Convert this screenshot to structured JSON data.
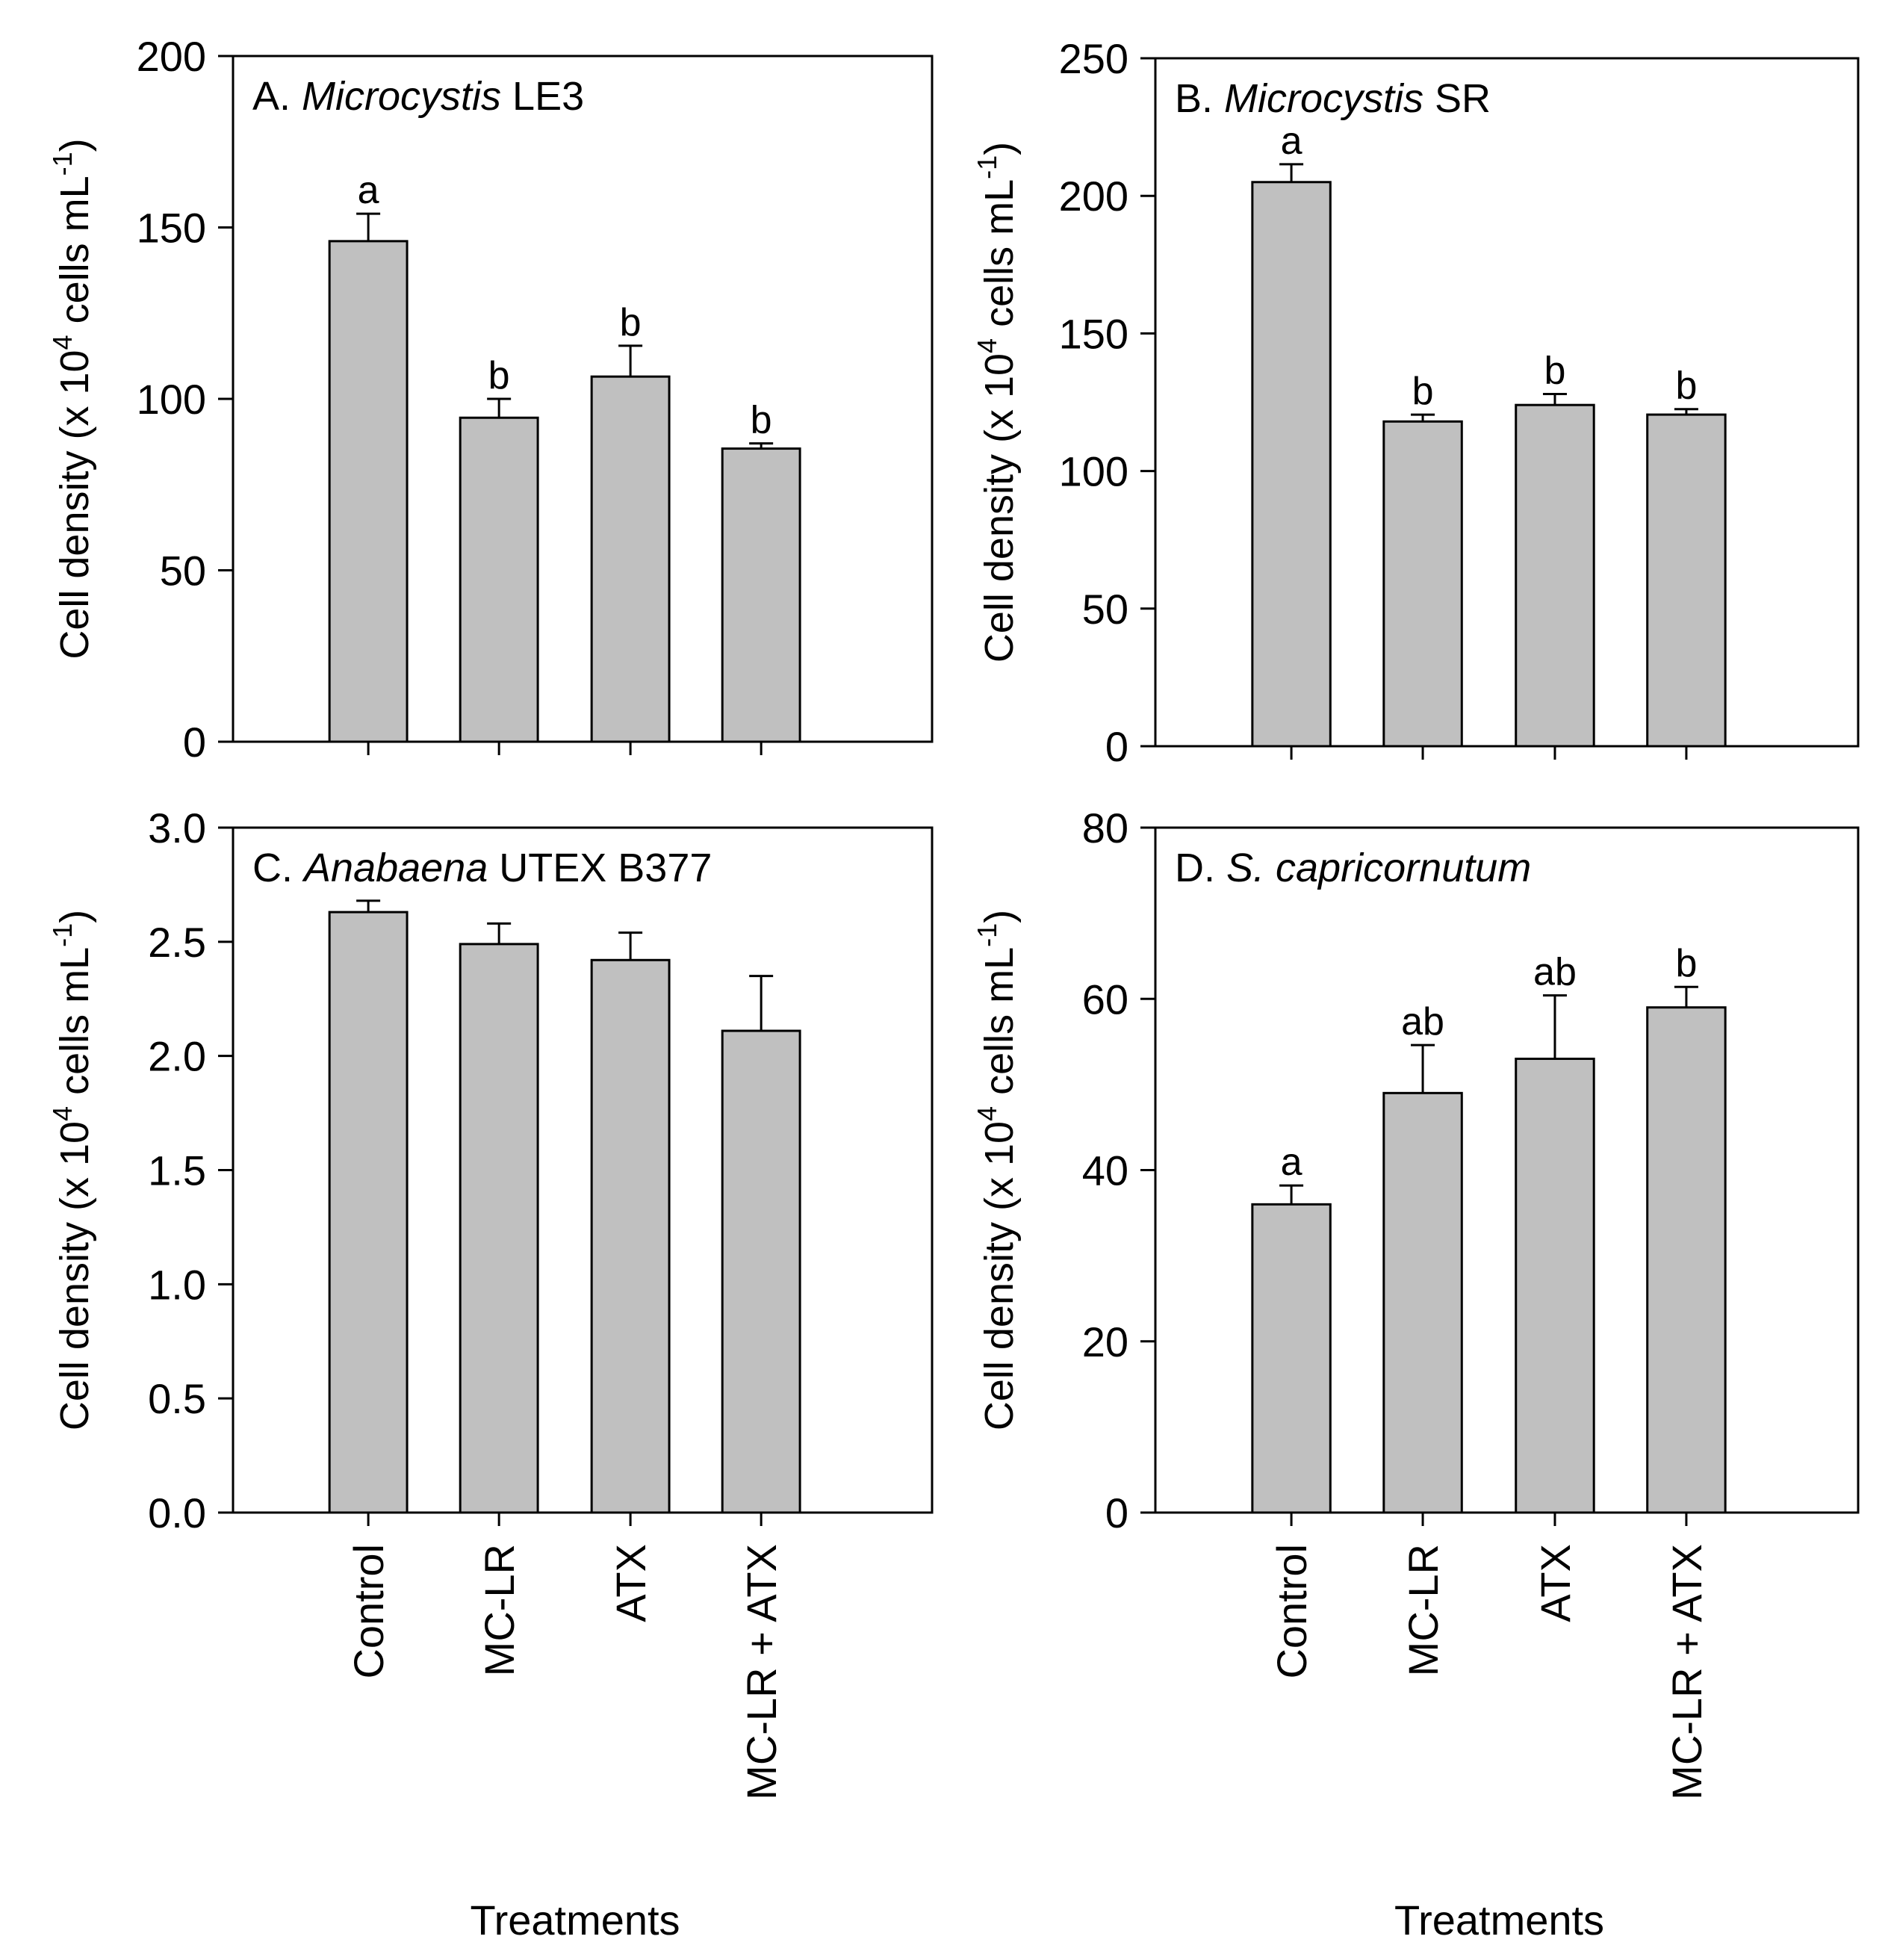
{
  "figure": {
    "x_axis_title": "Treatments",
    "y_axis_title_parts": [
      "Cell density (x 10",
      "4",
      " cells mL",
      "-1",
      ")"
    ],
    "categories": [
      "Control",
      "MC-LR",
      "ATX",
      "MC-LR + ATX"
    ],
    "bar_fill": "#c0c0c0",
    "line_color": "#000000"
  },
  "chart_data": [
    {
      "type": "bar",
      "panel": "A",
      "title_prefix": "A. ",
      "title_italic": "Microcystis",
      "title_suffix": " LE3",
      "categories": [
        "Control",
        "MC-LR",
        "ATX",
        "MC-LR + ATX"
      ],
      "values": [
        146,
        94.5,
        106.5,
        85.5
      ],
      "errors": [
        8,
        5.5,
        9,
        1.5
      ],
      "letters": [
        "a",
        "b",
        "b",
        "b"
      ],
      "ylim": [
        0,
        200
      ],
      "yticks": [
        0,
        50,
        100,
        150,
        200
      ],
      "ytick_labels": [
        "0",
        "50",
        "100",
        "150",
        "200"
      ],
      "xlabel": "",
      "ylabel": "Cell density (x 10^4 cells mL^-1)"
    },
    {
      "type": "bar",
      "panel": "B",
      "title_prefix": "B. ",
      "title_italic": "Microcystis",
      "title_suffix": " SR",
      "categories": [
        "Control",
        "MC-LR",
        "ATX",
        "MC-LR + ATX"
      ],
      "values": [
        205,
        118,
        124,
        120.5
      ],
      "errors": [
        6.5,
        2.5,
        4,
        2
      ],
      "letters": [
        "a",
        "b",
        "b",
        "b"
      ],
      "ylim": [
        0,
        250
      ],
      "yticks": [
        0,
        50,
        100,
        150,
        200,
        250
      ],
      "ytick_labels": [
        "0",
        "50",
        "100",
        "150",
        "200",
        "250"
      ],
      "xlabel": "",
      "ylabel": "Cell density (x 10^4 cells mL^-1)"
    },
    {
      "type": "bar",
      "panel": "C",
      "title_prefix": "C. ",
      "title_italic": "Anabaena",
      "title_suffix": " UTEX B377",
      "categories": [
        "Control",
        "MC-LR",
        "ATX",
        "MC-LR + ATX"
      ],
      "values": [
        2.63,
        2.49,
        2.42,
        2.11
      ],
      "errors": [
        0.05,
        0.09,
        0.12,
        0.24
      ],
      "letters": [
        "",
        "",
        "",
        ""
      ],
      "ylim": [
        0,
        3.0
      ],
      "yticks": [
        0,
        0.5,
        1.0,
        1.5,
        2.0,
        2.5,
        3.0
      ],
      "ytick_labels": [
        "0.0",
        "0.5",
        "1.0",
        "1.5",
        "2.0",
        "2.5",
        "3.0"
      ],
      "xlabel": "Treatments",
      "ylabel": "Cell density (x 10^4 cells mL^-1)"
    },
    {
      "type": "bar",
      "panel": "D",
      "title_prefix": "D. ",
      "title_italic": "S. capricornutum",
      "title_suffix": "",
      "categories": [
        "Control",
        "MC-LR",
        "ATX",
        "MC-LR + ATX"
      ],
      "values": [
        36,
        49,
        53,
        59
      ],
      "errors": [
        2.2,
        5.6,
        7.4,
        2.4
      ],
      "letters": [
        "a",
        "ab",
        "ab",
        "b"
      ],
      "ylim": [
        0,
        80
      ],
      "yticks": [
        0,
        20,
        40,
        60,
        80
      ],
      "ytick_labels": [
        "0",
        "20",
        "40",
        "60",
        "80"
      ],
      "xlabel": "Treatments",
      "ylabel": "Cell density (x 10^4 cells mL^-1)"
    }
  ]
}
